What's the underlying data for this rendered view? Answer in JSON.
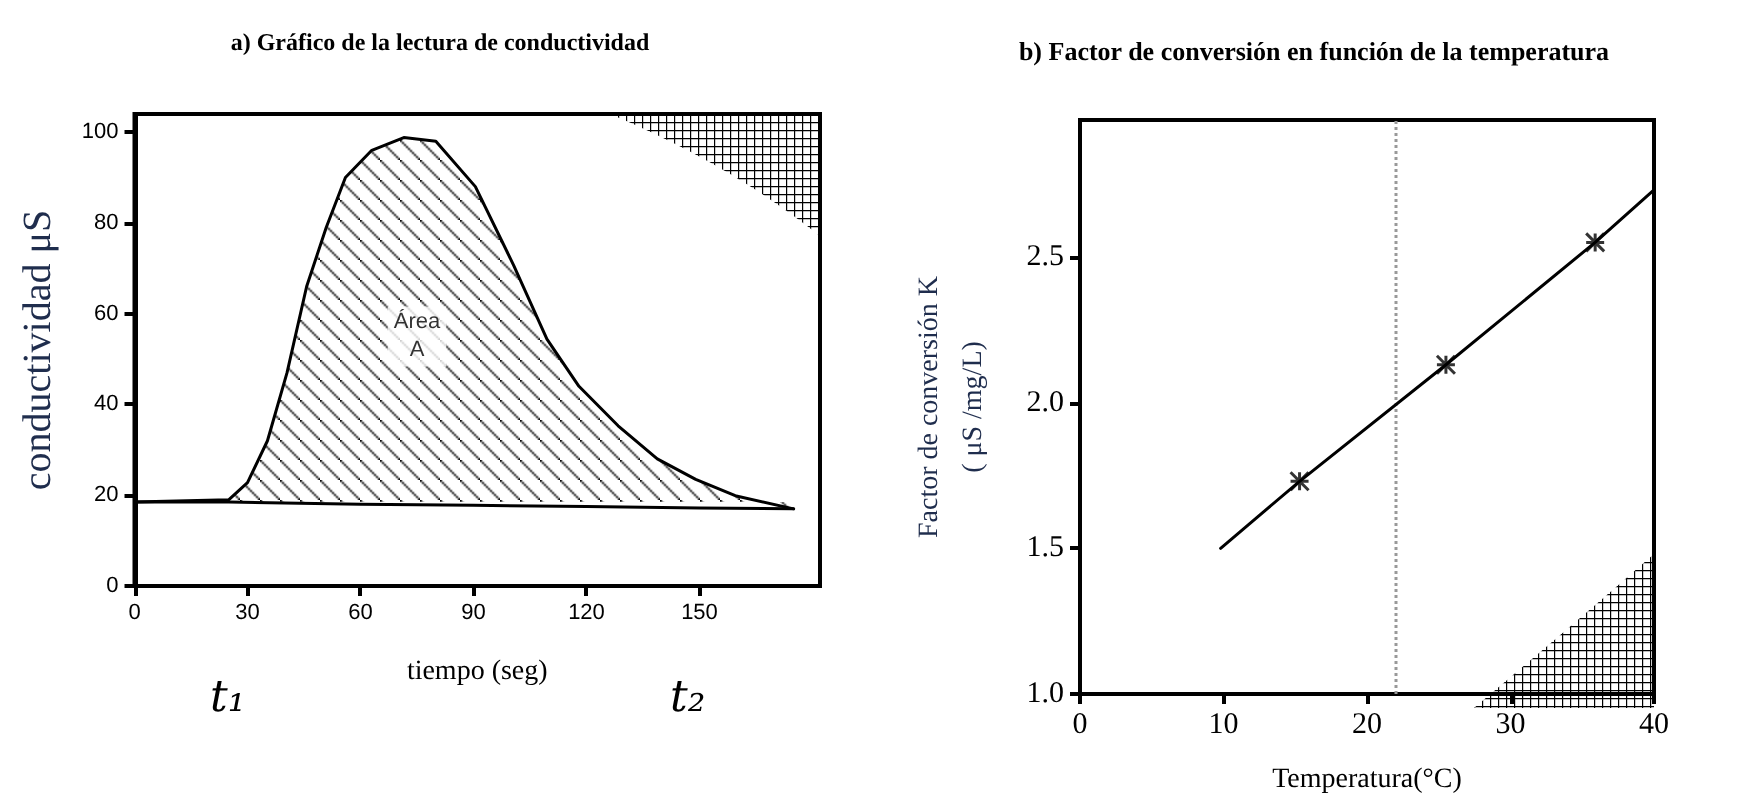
{
  "chart_data": [
    {
      "type": "area",
      "title": "a) Gráfico de la lectura de conductividad",
      "xlabel": "tiempo (seg)",
      "ylabel": "conductividad μS",
      "series": [
        {
          "type": "line",
          "color": "#000000",
          "x": [
            0,
            25,
            60,
            90,
            120,
            150,
            175
          ],
          "values": [
            18.5,
            18.5,
            18,
            17.8,
            17.5,
            17.2,
            17
          ]
        },
        {
          "color": "#000000",
          "x": [
            0,
            25,
            30,
            35.3,
            40.5,
            45.7,
            50.9,
            56,
            63,
            71.5,
            80,
            90.5,
            100.7,
            109.5,
            118,
            128.4,
            138.8,
            149,
            159.5,
            175
          ],
          "values": [
            18.5,
            19,
            22.8,
            32,
            47,
            66,
            79,
            90,
            96,
            98.8,
            98,
            88,
            70.6,
            54.4,
            44,
            35.3,
            28,
            23.5,
            19.9,
            17
          ]
        }
      ],
      "xlim": [
        0,
        182
      ],
      "xticks": [
        0,
        30,
        60,
        90,
        120,
        150
      ],
      "ylim": [
        0,
        104
      ],
      "yticks": [
        0,
        20,
        40,
        60,
        80,
        100
      ],
      "grid": false,
      "marker": "none",
      "line_style": "solid",
      "annotations": [
        {
          "text": "Área\nA",
          "x": 75,
          "y": 55
        },
        "t₁",
        "t₂"
      ]
    },
    {
      "type": "line",
      "title": "b) Factor de conversión en función de la temperatura",
      "xlabel": "Temperatura(°C)",
      "ylabel": "Factor de conversión K\n( μS /mg/L)",
      "series": [
        {
          "color": "#000000",
          "x": [
            9.8,
            15.3,
            25.5,
            35.9,
            40
          ],
          "values": [
            1.5,
            1.73,
            2.13,
            2.55,
            2.73
          ],
          "marker": "none"
        },
        {
          "type": "scatter",
          "color": "#000000",
          "x": [
            15.3,
            25.5,
            35.9
          ],
          "values": [
            1.73,
            2.13,
            2.55
          ],
          "marker": "cross"
        }
      ],
      "xlim": [
        0,
        40
      ],
      "xticks": [
        0,
        10,
        20,
        30,
        40
      ],
      "ylim": [
        1,
        2.97
      ],
      "yticks": [
        {
          "value": 1,
          "label": "1.0"
        },
        1.5,
        {
          "value": 2,
          "label": "2.0"
        },
        2.5
      ],
      "grid": false,
      "line_style": "solid",
      "ref_lines": [
        {
          "axis": "x",
          "value": 22,
          "color": "#999999",
          "line_style": "dotted"
        }
      ]
    }
  ]
}
